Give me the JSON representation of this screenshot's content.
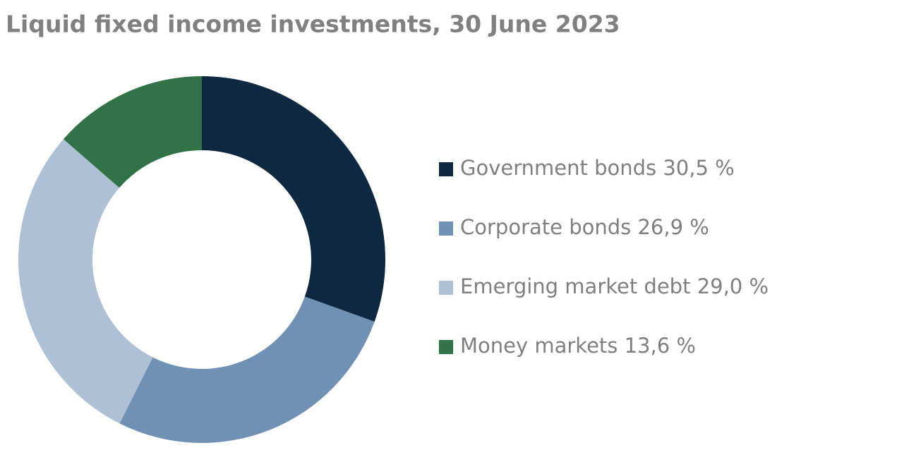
{
  "chart_data": {
    "type": "donut",
    "title": "Liquid fixed income investments, 30 June 2023",
    "categories": [
      "Government bonds",
      "Corporate bonds",
      "Emerging market debt",
      "Money markets"
    ],
    "values": [
      30.5,
      26.9,
      29.0,
      13.6
    ],
    "value_labels": [
      "30,5 %",
      "26,9 %",
      "29,0 %",
      "13,6 %"
    ],
    "colors": [
      "#0d2840",
      "#7090b4",
      "#adc0d4",
      "#317249"
    ]
  }
}
